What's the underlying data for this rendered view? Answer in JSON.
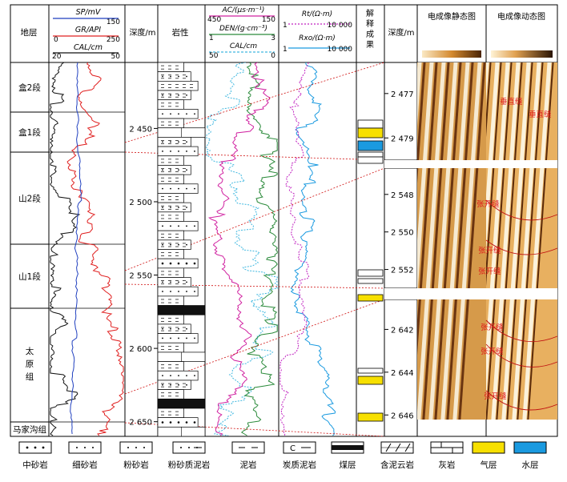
{
  "headers": {
    "formation": "地层",
    "curves1": [
      {
        "name": "SP/mV",
        "min": "",
        "max": "150",
        "color": "#1f3fbf"
      },
      {
        "name": "GR/API",
        "min": "0",
        "max": "250",
        "color": "#e02020"
      },
      {
        "name": "CAL/cm",
        "min": "20",
        "max": "50",
        "color": "#111111"
      }
    ],
    "depth": "深度/m",
    "lithology": "岩性",
    "curves2": [
      {
        "name": "AC/(μs·m⁻¹)",
        "min": "450",
        "max": "150",
        "color": "#d020a0"
      },
      {
        "name": "DEN/(g·cm⁻³)",
        "min": "1",
        "max": "3",
        "color": "#2a8a3a"
      },
      {
        "name": "CAL/cm",
        "min": "50",
        "max": "0",
        "color": "#40b8e0"
      }
    ],
    "curves3": [
      {
        "name": "Rt/(Ω·m)",
        "min": "1",
        "max": "10 000",
        "color": "#c020c0"
      },
      {
        "name": "Rxo/(Ω·m)",
        "min": "1",
        "max": "10 000",
        "color": "#1a9ae0"
      }
    ],
    "interp": "解释成果",
    "depth2": "深度/m",
    "static": "电成像静态图",
    "dynamic": "电成像动态图"
  },
  "formations": [
    {
      "name": "盒2段"
    },
    {
      "name": "盒1段"
    },
    {
      "name": "山2段"
    },
    {
      "name": "山1段"
    },
    {
      "name": "太原组"
    },
    {
      "name": "马家沟组"
    }
  ],
  "chart_data": {
    "type": "line",
    "depth_ticks": [
      "2 450",
      "2 500",
      "2 550",
      "2 600",
      "2 650"
    ],
    "zoom_intervals": [
      {
        "ticks": [
          "2 477",
          "2 479"
        ]
      },
      {
        "ticks": [
          "2 548",
          "2 550",
          "2 552"
        ]
      },
      {
        "ticks": [
          "2 642",
          "2 644",
          "2 646"
        ]
      }
    ],
    "image_labels": [
      {
        "text": "垂直缝"
      },
      {
        "text": "垂直缝"
      },
      {
        "text": "张开缝"
      },
      {
        "text": "张开缝"
      },
      {
        "text": "张开缝"
      },
      {
        "text": "张开缝"
      },
      {
        "text": "张开缝"
      },
      {
        "text": "张开缝"
      }
    ]
  },
  "legend": [
    {
      "label": "中砂岩"
    },
    {
      "label": "细砂岩"
    },
    {
      "label": "粉砂岩"
    },
    {
      "label": "粉砂质泥岩"
    },
    {
      "label": "泥岩"
    },
    {
      "label": "炭质泥岩"
    },
    {
      "label": "煤层"
    },
    {
      "label": "含泥云岩"
    },
    {
      "label": "灰岩"
    },
    {
      "label": "气层"
    },
    {
      "label": "水层"
    }
  ],
  "colors": {
    "gas": "#f7e000",
    "water": "#1a9ae0",
    "image": "#c8822a",
    "connector": "#d01010"
  }
}
